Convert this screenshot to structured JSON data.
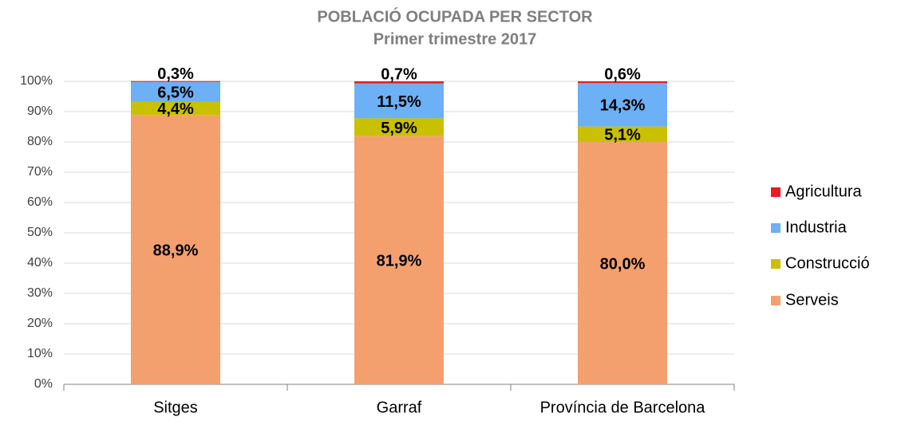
{
  "chart_data": {
    "type": "stacked_bar",
    "title": "POBLACIÓ OCUPADA PER SECTOR",
    "subtitle": "Primer trimestre 2017",
    "categories": [
      "Sitges",
      "Garraf",
      "Província de Barcelona"
    ],
    "series": [
      {
        "name": "Serveis",
        "color": "#f4a06e",
        "values": [
          88.9,
          81.9,
          80.0
        ],
        "value_labels": [
          "88,9%",
          "81,9%",
          "80,0%"
        ]
      },
      {
        "name": "Construcció",
        "color": "#c9c000",
        "values": [
          4.4,
          5.9,
          5.1
        ],
        "value_labels": [
          "4,4%",
          "5,9%",
          "5,1%"
        ]
      },
      {
        "name": "Industria",
        "color": "#6cb0f6",
        "values": [
          6.5,
          11.5,
          14.3
        ],
        "value_labels": [
          "6,5%",
          "11,5%",
          "14,3%"
        ]
      },
      {
        "name": "Agricultura",
        "color": "#e3201f",
        "values": [
          0.3,
          0.7,
          0.6
        ],
        "value_labels": [
          "0,3%",
          "0,7%",
          "0,6%"
        ]
      }
    ],
    "ylim": [
      0,
      100
    ],
    "yticks": [
      {
        "value": 0,
        "label": "0%"
      },
      {
        "value": 10,
        "label": "10%"
      },
      {
        "value": 20,
        "label": "20%"
      },
      {
        "value": 30,
        "label": "30%"
      },
      {
        "value": 40,
        "label": "40%"
      },
      {
        "value": 50,
        "label": "50%"
      },
      {
        "value": 60,
        "label": "60%"
      },
      {
        "value": 70,
        "label": "70%"
      },
      {
        "value": 80,
        "label": "80%"
      },
      {
        "value": 90,
        "label": "90%"
      },
      {
        "value": 100,
        "label": "100%"
      }
    ],
    "grid": true,
    "legend": "right"
  }
}
